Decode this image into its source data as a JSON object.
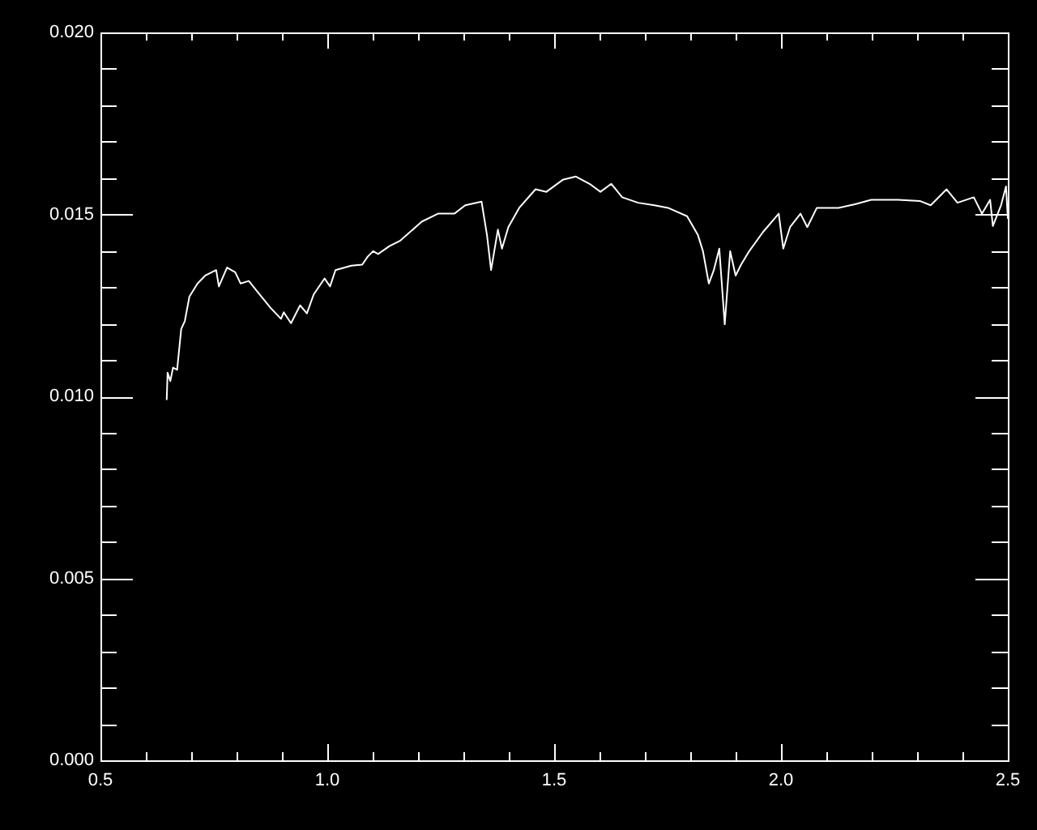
{
  "chart_data": {
    "type": "line",
    "xlim": [
      0.5,
      2.5
    ],
    "ylim": [
      0,
      0.02
    ],
    "xticks": [
      0.5,
      {
        "value": 0.6,
        "label": null
      },
      {
        "value": 0.7,
        "label": null
      },
      {
        "value": 0.8,
        "label": null
      },
      {
        "value": 0.9,
        "label": null
      },
      {
        "value": 1.0,
        "label": "1.0"
      },
      {
        "value": 1.1,
        "label": null
      },
      {
        "value": 1.2,
        "label": null
      },
      {
        "value": 1.3,
        "label": null
      },
      {
        "value": 1.4,
        "label": null
      },
      1.5,
      {
        "value": 1.6,
        "label": null
      },
      {
        "value": 1.7,
        "label": null
      },
      {
        "value": 1.8,
        "label": null
      },
      {
        "value": 1.9,
        "label": null
      },
      {
        "value": 2.0,
        "label": "2.0"
      },
      {
        "value": 2.1,
        "label": null
      },
      {
        "value": 2.2,
        "label": null
      },
      {
        "value": 2.3,
        "label": null
      },
      {
        "value": 2.4,
        "label": null
      },
      2.5
    ],
    "yticks": [
      {
        "value": 0,
        "label": "0.000"
      },
      {
        "value": 0.001,
        "label": null
      },
      {
        "value": 0.002,
        "label": null
      },
      {
        "value": 0.003,
        "label": null
      },
      {
        "value": 0.004,
        "label": null
      },
      0.005,
      {
        "value": 0.006,
        "label": null
      },
      {
        "value": 0.007,
        "label": null
      },
      {
        "value": 0.008,
        "label": null
      },
      {
        "value": 0.009,
        "label": null
      },
      {
        "value": 0.01,
        "label": "0.010"
      },
      {
        "value": 0.011,
        "label": null
      },
      {
        "value": 0.012,
        "label": null
      },
      {
        "value": 0.013,
        "label": null
      },
      {
        "value": 0.014,
        "label": null
      },
      0.015,
      {
        "value": 0.016,
        "label": null
      },
      {
        "value": 0.017,
        "label": null
      },
      {
        "value": 0.018,
        "label": null
      },
      {
        "value": 0.019,
        "label": null
      },
      {
        "value": 0.02,
        "label": "0.020"
      }
    ],
    "grid": false,
    "legend": false,
    "marker": "none",
    "line_style": "solid",
    "series": [
      {
        "color": "#ffffff",
        "x": [
          0.646,
          0.648,
          0.654,
          0.66,
          0.669,
          0.678,
          0.686,
          0.696,
          0.714,
          0.731,
          0.755,
          0.761,
          0.779,
          0.797,
          0.809,
          0.827,
          0.851,
          0.875,
          0.898,
          0.904,
          0.92,
          0.94,
          0.955,
          0.97,
          0.994,
          1.006,
          1.018,
          1.053,
          1.077,
          1.089,
          1.101,
          1.112,
          1.137,
          1.161,
          1.208,
          1.244,
          1.28,
          1.304,
          1.34,
          1.352,
          1.361,
          1.376,
          1.385,
          1.399,
          1.423,
          1.459,
          1.483,
          1.519,
          1.548,
          1.578,
          1.602,
          1.626,
          1.65,
          1.685,
          1.721,
          1.751,
          1.793,
          1.817,
          1.828,
          1.841,
          1.852,
          1.864,
          1.876,
          1.888,
          1.9,
          1.912,
          1.93,
          1.96,
          1.995,
          2.005,
          2.02,
          2.043,
          2.058,
          2.079,
          2.127,
          2.163,
          2.199,
          2.258,
          2.306,
          2.33,
          2.365,
          2.389,
          2.425,
          2.443,
          2.461,
          2.467,
          2.485,
          2.496,
          2.5
        ],
        "values": [
          0.0099,
          0.01065,
          0.01042,
          0.01079,
          0.01073,
          0.01185,
          0.01207,
          0.01274,
          0.0131,
          0.01332,
          0.01347,
          0.01302,
          0.01354,
          0.01341,
          0.0131,
          0.01317,
          0.0128,
          0.01243,
          0.01213,
          0.01231,
          0.01201,
          0.0125,
          0.01228,
          0.0128,
          0.01324,
          0.01302,
          0.01347,
          0.01359,
          0.01362,
          0.01384,
          0.01399,
          0.01391,
          0.01413,
          0.01428,
          0.0148,
          0.01502,
          0.01502,
          0.01525,
          0.01535,
          0.01443,
          0.01347,
          0.01458,
          0.01406,
          0.01465,
          0.01518,
          0.01569,
          0.01562,
          0.01595,
          0.01604,
          0.01584,
          0.01562,
          0.01584,
          0.01547,
          0.01532,
          0.01525,
          0.01518,
          0.01495,
          0.01443,
          0.01399,
          0.0131,
          0.01347,
          0.01406,
          0.01198,
          0.01399,
          0.01332,
          0.01362,
          0.01399,
          0.01451,
          0.01502,
          0.01406,
          0.01465,
          0.01502,
          0.01465,
          0.01518,
          0.01518,
          0.01528,
          0.0154,
          0.0154,
          0.01537,
          0.01525,
          0.01569,
          0.01532,
          0.01547,
          0.01502,
          0.0154,
          0.01468,
          0.01525,
          0.01577,
          0.01488
        ]
      }
    ]
  }
}
